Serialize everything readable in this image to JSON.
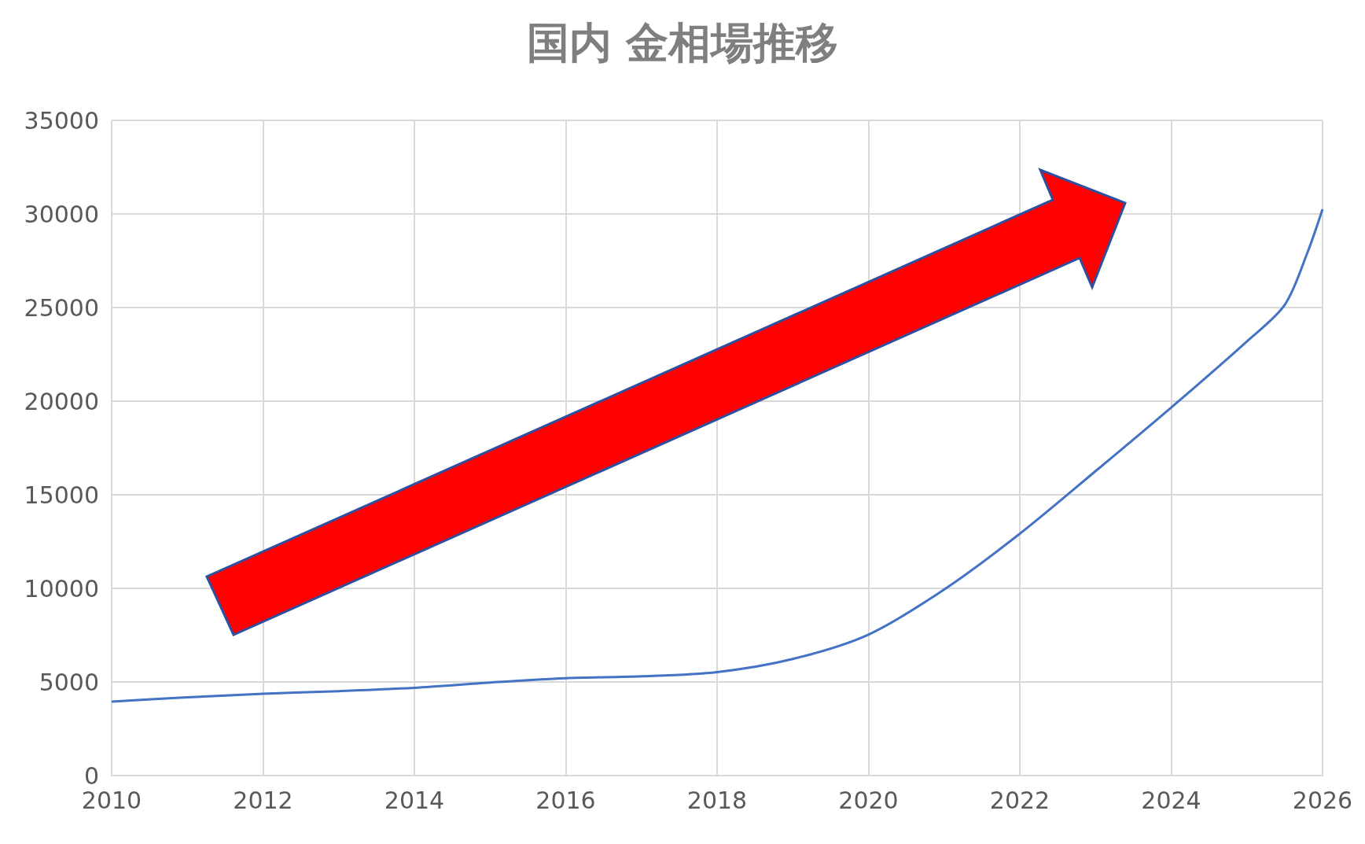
{
  "chart_data": {
    "type": "line",
    "title": "国内 金相場推移",
    "x": [
      2010,
      2011,
      2012,
      2013,
      2014,
      2015,
      2016,
      2017,
      2018,
      2019,
      2020,
      2021,
      2022,
      2023,
      2024,
      2025,
      2025.5,
      2025.8,
      2026
    ],
    "series": [
      {
        "color": "#4472c4",
        "values": [
          3950,
          4180,
          4370,
          4510,
          4690,
          4970,
          5200,
          5300,
          5530,
          6230,
          7530,
          9940,
          12920,
          16260,
          19660,
          23190,
          25140,
          27930,
          30250
        ]
      }
    ],
    "xlim": [
      2010,
      2026
    ],
    "xticks": [
      2010,
      2012,
      2014,
      2016,
      2018,
      2020,
      2022,
      2024,
      2026
    ],
    "ylim": [
      0,
      35000
    ],
    "yticks": [
      0,
      5000,
      10000,
      15000,
      20000,
      25000,
      30000,
      35000
    ],
    "grid": true,
    "marker": "none",
    "line_style": "solid"
  }
}
